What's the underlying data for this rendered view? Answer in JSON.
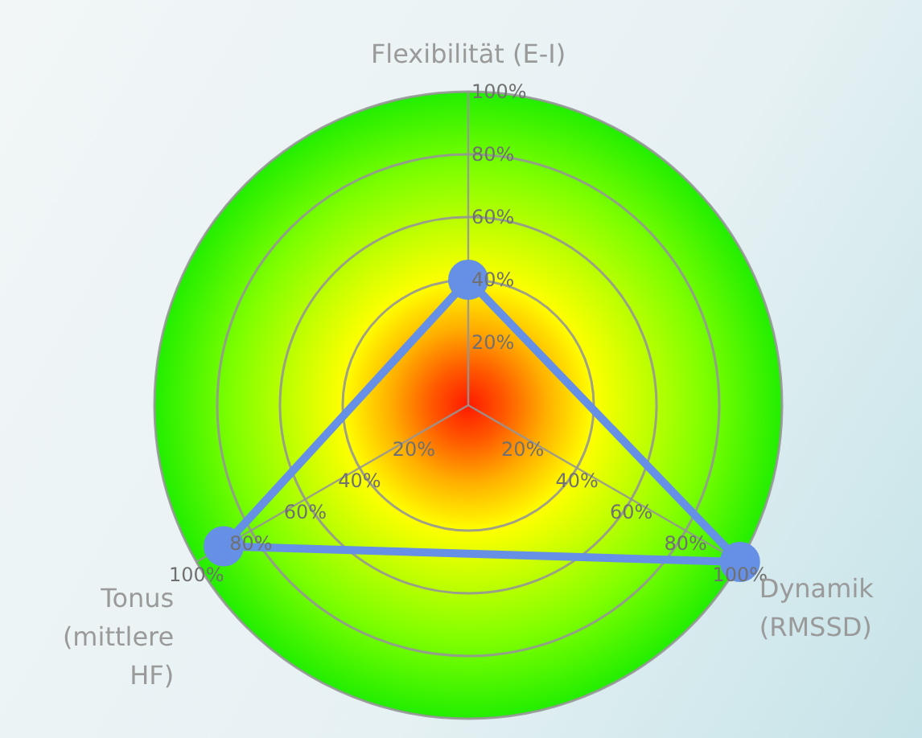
{
  "chart_data": {
    "type": "radar",
    "categories": [
      "Flexibilität (E-I)",
      "Dynamik (RMSSD)",
      "Tonus (mittlere HF)"
    ],
    "series": [
      {
        "color": "#6590e6",
        "values": [
          40,
          100,
          90
        ]
      }
    ],
    "ylim": [
      0,
      100
    ],
    "yticks": [
      {
        "value": 20,
        "label": "20%"
      },
      {
        "value": 40,
        "label": "40%"
      },
      {
        "value": 60,
        "label": "60%"
      },
      {
        "value": 80,
        "label": "80%"
      },
      {
        "value": 100,
        "label": "100%"
      }
    ],
    "grid": true,
    "legend": false,
    "marker": "circle"
  }
}
